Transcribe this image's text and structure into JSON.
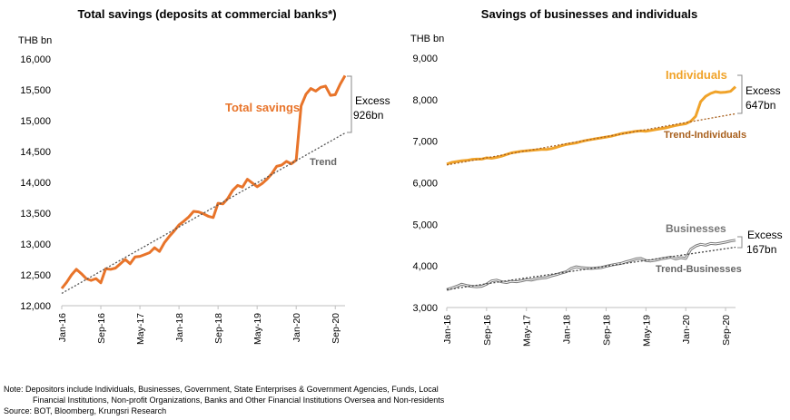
{
  "chart_data": [
    {
      "type": "line",
      "title": "Total savings (deposits at commercial banks*)",
      "ylabel": "THB bn",
      "ylim": [
        12000,
        16000
      ],
      "yticks": [
        "12,000",
        "12,500",
        "13,000",
        "13,500",
        "14,000",
        "14,500",
        "15,000",
        "15,500",
        "16,000"
      ],
      "xtick_labels": [
        "Jan-16",
        "Sep-16",
        "May-17",
        "Jan-18",
        "Sep-18",
        "May-19",
        "Jan-20",
        "Sep-20"
      ],
      "grid": false,
      "series": [
        {
          "name": "Total savings",
          "color": "#e8742a",
          "start": "2016-01",
          "values": [
            12280,
            12380,
            12500,
            12590,
            12520,
            12440,
            12410,
            12440,
            12370,
            12600,
            12590,
            12610,
            12680,
            12750,
            12680,
            12790,
            12800,
            12830,
            12860,
            12940,
            12880,
            13020,
            13120,
            13210,
            13310,
            13370,
            13440,
            13530,
            13520,
            13490,
            13450,
            13430,
            13660,
            13650,
            13740,
            13870,
            13950,
            13920,
            14050,
            13990,
            13930,
            13980,
            14050,
            14140,
            14260,
            14280,
            14340,
            14300,
            14360,
            15240,
            15430,
            15520,
            15480,
            15540,
            15560,
            15410,
            15420,
            15590,
            15730
          ]
        },
        {
          "name": "Trend",
          "color": "#555555",
          "dashed": true,
          "start_value": 12200,
          "end_value": 14800
        }
      ],
      "annotations": [
        {
          "text": "Total savings",
          "color": "#e8742a"
        },
        {
          "text": "Trend",
          "color": "#666666"
        },
        {
          "lines": [
            "Excess",
            "926bn"
          ]
        }
      ]
    },
    {
      "type": "line",
      "title": "Savings of businesses and individuals",
      "ylabel": "THB bn",
      "ylim": [
        3000,
        9000
      ],
      "yticks": [
        "3,000",
        "4,000",
        "5,000",
        "6,000",
        "7,000",
        "8,000",
        "9,000"
      ],
      "xtick_labels": [
        "Jan-16",
        "Sep-16",
        "May-17",
        "Jan-18",
        "Sep-18",
        "May-19",
        "Jan-20",
        "Sep-20"
      ],
      "grid": false,
      "series": [
        {
          "name": "Individuals",
          "color": "#f0a32a",
          "start": "2016-01",
          "values": [
            6450,
            6490,
            6510,
            6530,
            6540,
            6560,
            6570,
            6570,
            6600,
            6590,
            6610,
            6640,
            6680,
            6720,
            6740,
            6760,
            6770,
            6780,
            6790,
            6800,
            6800,
            6820,
            6850,
            6890,
            6920,
            6940,
            6960,
            6990,
            7020,
            7040,
            7060,
            7080,
            7100,
            7120,
            7150,
            7180,
            7200,
            7220,
            7240,
            7250,
            7240,
            7260,
            7280,
            7300,
            7320,
            7350,
            7380,
            7400,
            7420,
            7480,
            7600,
            7950,
            8080,
            8150,
            8190,
            8170,
            8180,
            8200,
            8310
          ]
        },
        {
          "name": "Trend-Individuals",
          "color": "#a85f1c",
          "dashed": true,
          "start_value": 6430,
          "end_value": 7660
        },
        {
          "name": "Businesses",
          "color": "#666666",
          "start": "2016-01",
          "values": [
            3430,
            3470,
            3510,
            3560,
            3530,
            3510,
            3500,
            3510,
            3560,
            3640,
            3660,
            3620,
            3600,
            3630,
            3620,
            3640,
            3670,
            3660,
            3690,
            3710,
            3720,
            3760,
            3790,
            3830,
            3860,
            3940,
            3980,
            3960,
            3950,
            3940,
            3950,
            3960,
            3990,
            4020,
            4040,
            4060,
            4100,
            4130,
            4170,
            4180,
            4130,
            4120,
            4140,
            4170,
            4190,
            4210,
            4170,
            4200,
            4180,
            4400,
            4480,
            4520,
            4500,
            4540,
            4530,
            4550,
            4570,
            4600,
            4620
          ]
        },
        {
          "name": "Trend-Businesses",
          "color": "#444444",
          "dashed": true,
          "start_value": 3430,
          "end_value": 4450
        }
      ],
      "annotations": [
        {
          "lines": [
            "Excess",
            "647bn"
          ]
        },
        {
          "lines": [
            "Excess",
            "167bn"
          ]
        }
      ]
    }
  ],
  "notes": {
    "line1": "Note: Depositors include Individuals, Businesses, Government, State Enterprises & Government Agencies, Funds, Local",
    "line2": "Financial Institutions, Non-profit Organizations, Banks and Other Financial Institutions Oversea and Non-residents",
    "source": "Source: BOT, Bloomberg, Krungsri Research"
  }
}
